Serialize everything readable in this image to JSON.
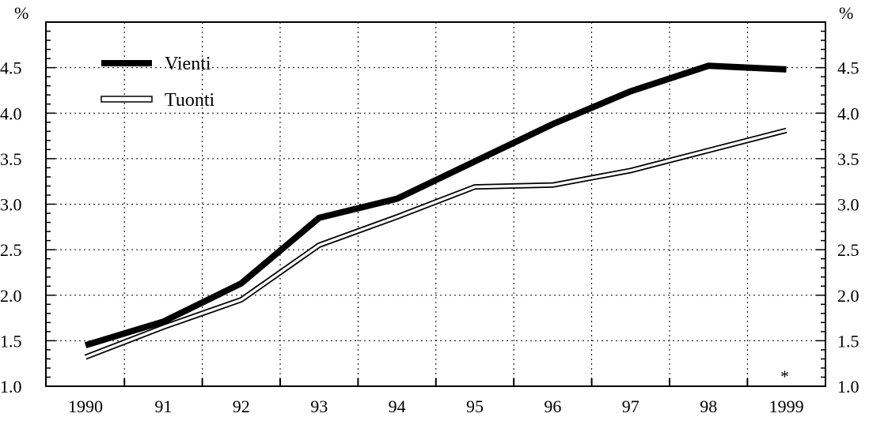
{
  "chart_data": {
    "type": "line",
    "x": [
      "1990",
      "91",
      "92",
      "93",
      "94",
      "95",
      "96",
      "97",
      "98",
      "1999"
    ],
    "y_left_unit": "%",
    "y_right_unit": "%",
    "ylim": [
      1.0,
      5.0
    ],
    "yticks": [
      1.0,
      1.5,
      2.0,
      2.5,
      3.0,
      3.5,
      4.0,
      4.5
    ],
    "ytick_labels": [
      "1.0",
      "1.5",
      "2.0",
      "2.5",
      "3.0",
      "3.5",
      "4.0",
      "4.5"
    ],
    "grid": true,
    "legend_position": "top-left",
    "annotation": "*",
    "series": [
      {
        "name": "Vienti",
        "style": "thick-solid",
        "color": "#000000",
        "values": [
          1.45,
          1.71,
          2.13,
          2.85,
          3.06,
          3.47,
          3.88,
          4.24,
          4.52,
          4.48
        ]
      },
      {
        "name": "Tuonti",
        "style": "double-outline",
        "color": "#000000",
        "values": [
          1.32,
          1.65,
          1.95,
          2.55,
          2.86,
          3.19,
          3.21,
          3.37,
          3.59,
          3.81
        ]
      }
    ]
  }
}
